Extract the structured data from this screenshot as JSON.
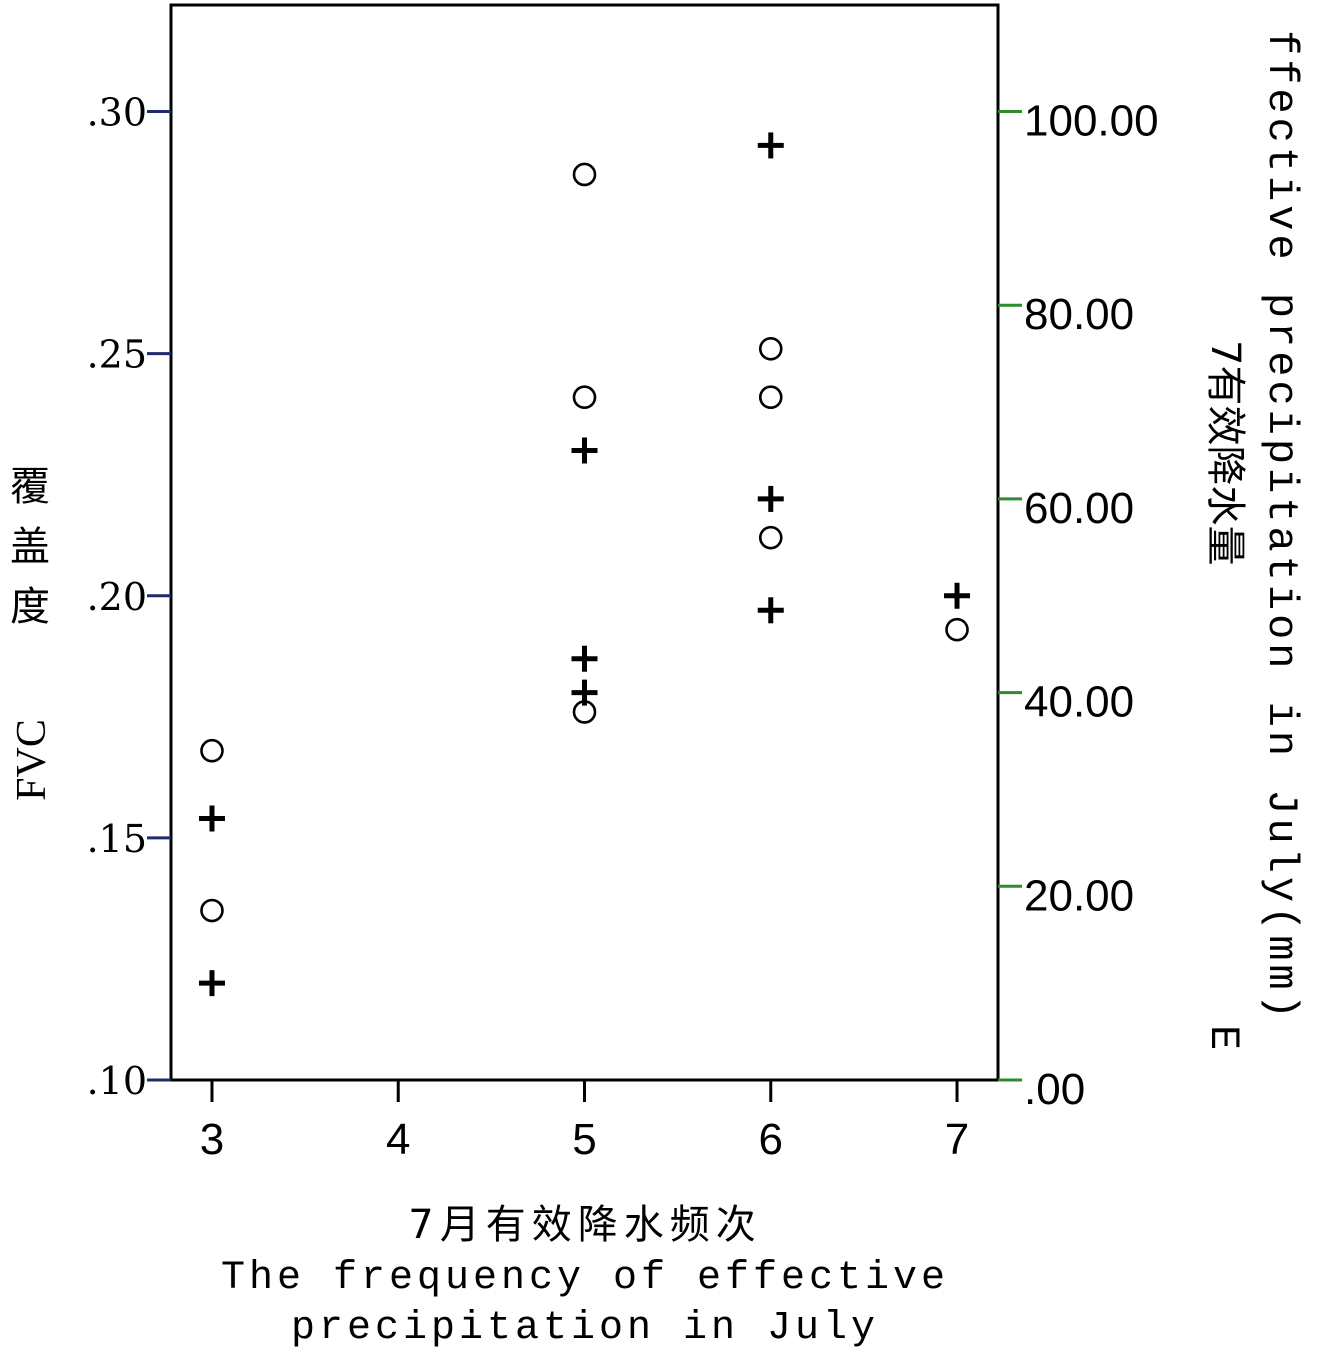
{
  "chart_data": {
    "type": "scatter",
    "xlabel_cn": "7月有效降水频次",
    "xlabel_en_line1": "The frequency of effective",
    "xlabel_en_line2": "precipitation in July",
    "ylabel_left_cn": [
      "覆",
      "盖",
      "度"
    ],
    "ylabel_left_en": "FVC",
    "ylabel_right_cn": "7有效降水量",
    "ylabel_right_en": "ffective precipitation in July(mm)",
    "ylabel_right_e": "E",
    "x_ticks": [
      "3",
      "4",
      "5",
      "6",
      "7"
    ],
    "x_tick_values": [
      3,
      4,
      5,
      6,
      7
    ],
    "xlim": [
      2.78,
      7.22
    ],
    "y_left_ticks": [
      ".10",
      ".15",
      ".20",
      ".25",
      ".30"
    ],
    "y_left_tick_values": [
      0.1,
      0.15,
      0.2,
      0.25,
      0.3
    ],
    "ylim_left": [
      0.1,
      0.322
    ],
    "y_right_ticks": [
      ".00",
      "20.00",
      "40.00",
      "60.00",
      "80.00",
      "100.00"
    ],
    "y_right_tick_values": [
      0,
      20,
      40,
      60,
      80,
      100
    ],
    "ylim_right": [
      0,
      111
    ],
    "left_axis_tick_color": "#1f2a6b",
    "right_axis_tick_color": "#2e8b2e",
    "grid": false,
    "series": [
      {
        "marker": "circle",
        "axis": "left",
        "points": [
          {
            "x": 3,
            "y": 0.168
          },
          {
            "x": 3,
            "y": 0.135
          },
          {
            "x": 5,
            "y": 0.287
          },
          {
            "x": 5,
            "y": 0.241
          },
          {
            "x": 5,
            "y": 0.176
          },
          {
            "x": 6,
            "y": 0.251
          },
          {
            "x": 6,
            "y": 0.241
          },
          {
            "x": 6,
            "y": 0.212
          },
          {
            "x": 7,
            "y": 0.193
          }
        ]
      },
      {
        "marker": "plus",
        "axis": "right",
        "points": [
          {
            "x": 3,
            "y": 27.0
          },
          {
            "x": 3,
            "y": 10.0
          },
          {
            "x": 5,
            "y": 65.0
          },
          {
            "x": 5,
            "y": 43.5
          },
          {
            "x": 5,
            "y": 40.0
          },
          {
            "x": 6,
            "y": 96.5
          },
          {
            "x": 6,
            "y": 60.0
          },
          {
            "x": 6,
            "y": 48.5
          },
          {
            "x": 7,
            "y": 50.0
          }
        ]
      }
    ]
  }
}
